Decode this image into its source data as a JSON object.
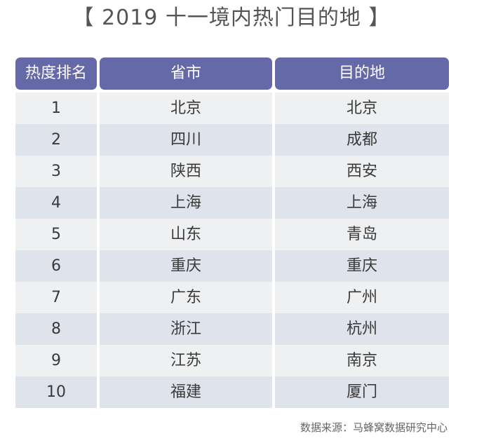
{
  "title": "【 2019 十一境内热门目的地 】",
  "table": {
    "headers": [
      "热度排名",
      "省市",
      "目的地"
    ],
    "rows": [
      [
        "1",
        "北京",
        "北京"
      ],
      [
        "2",
        "四川",
        "成都"
      ],
      [
        "3",
        "陕西",
        "西安"
      ],
      [
        "4",
        "上海",
        "上海"
      ],
      [
        "5",
        "山东",
        "青岛"
      ],
      [
        "6",
        "重庆",
        "重庆"
      ],
      [
        "7",
        "广东",
        "广州"
      ],
      [
        "8",
        "浙江",
        "杭州"
      ],
      [
        "9",
        "江苏",
        "南京"
      ],
      [
        "10",
        "福建",
        "厦门"
      ]
    ]
  },
  "source": "数据来源：马蜂窝数据研究中心",
  "colors": {
    "header_bg": "#6569a7",
    "row_light": "#eef0f2",
    "row_dark": "#dfe3ec"
  }
}
